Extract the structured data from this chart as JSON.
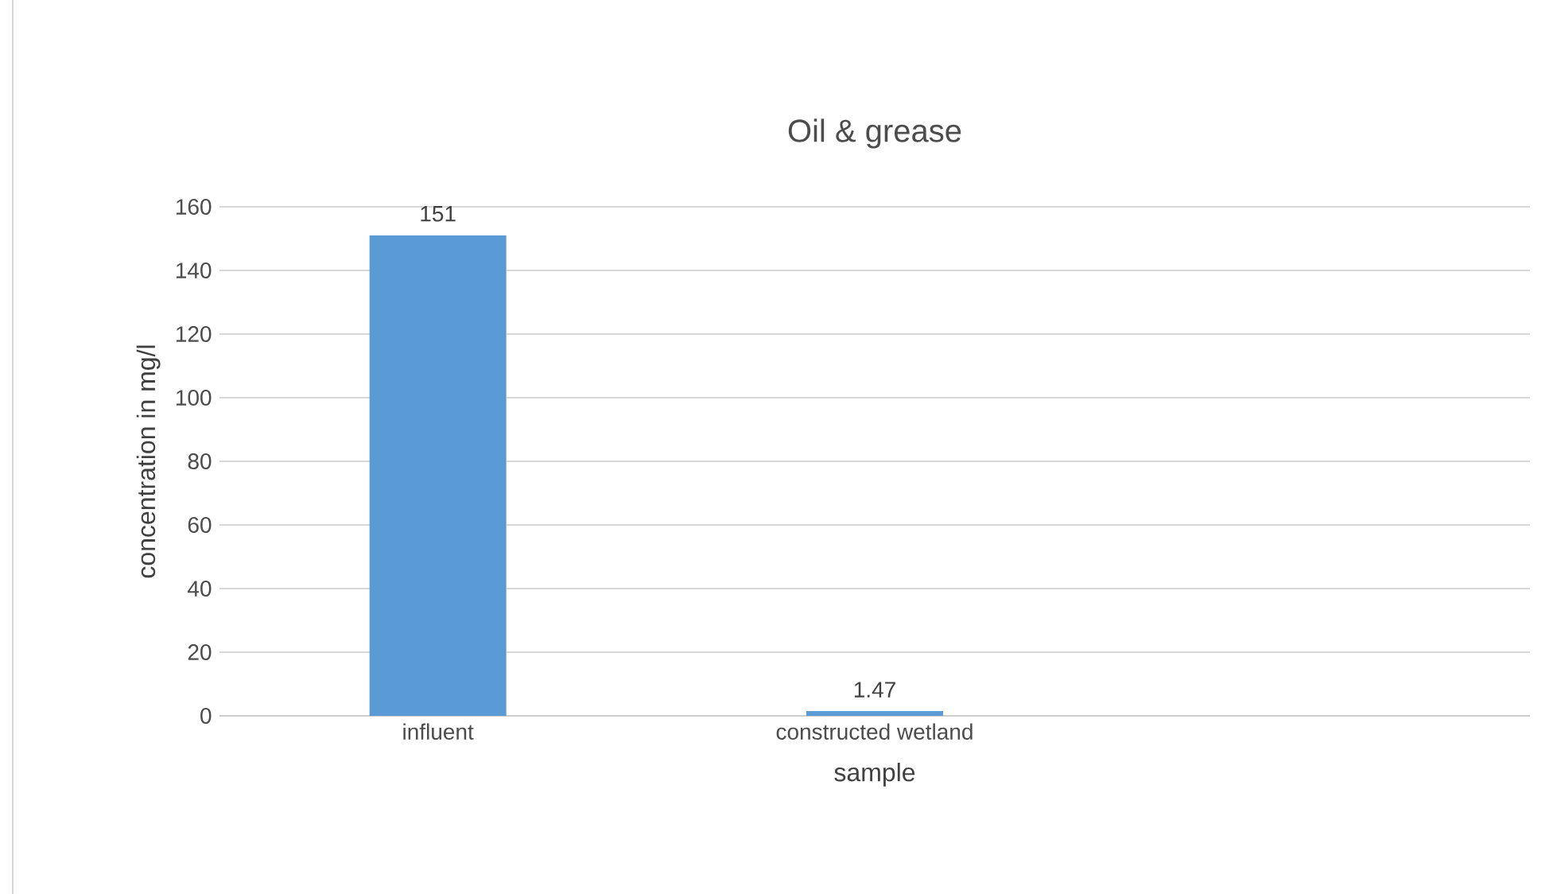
{
  "chart_data": {
    "type": "bar",
    "title": "Oil & grease",
    "xlabel": "sample",
    "ylabel": "concentration in mg/l",
    "categories": [
      "influent",
      "constructed wetland",
      null
    ],
    "values": [
      151,
      1.47,
      null
    ],
    "color": "#5b9bd5",
    "ylim": [
      0,
      160
    ],
    "yticks": [
      0,
      20,
      40,
      60,
      80,
      100,
      120,
      140,
      160
    ],
    "grid": "y",
    "data_labels": true
  }
}
